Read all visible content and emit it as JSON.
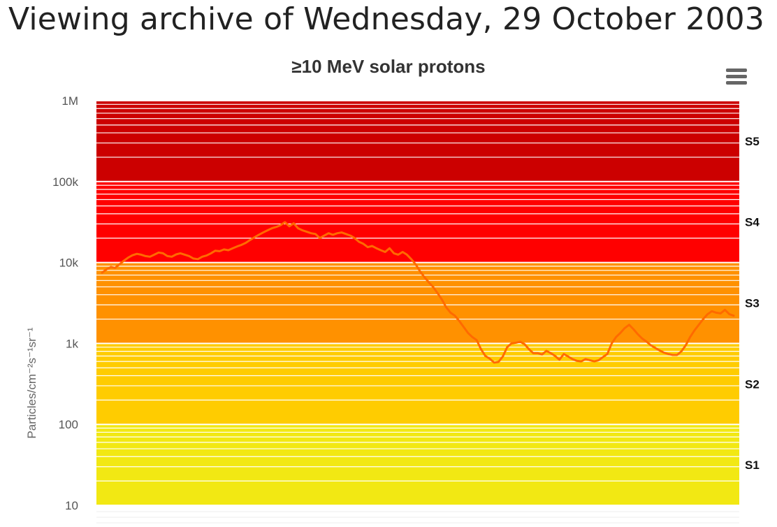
{
  "page": {
    "heading": "Viewing archive of Wednesday, 29 October 2003"
  },
  "menu": {
    "icon": "hamburger-menu-icon"
  },
  "chart_data": {
    "type": "line",
    "title": "≥10 MeV solar protons",
    "xlabel": "",
    "ylabel": "Particles/cm⁻²s⁻¹sr⁻¹",
    "y_scale": "log",
    "ylim": [
      10,
      1000000
    ],
    "y_ticks": [
      {
        "value": 10,
        "label": "10"
      },
      {
        "value": 100,
        "label": "100"
      },
      {
        "value": 1000,
        "label": "1k"
      },
      {
        "value": 10000,
        "label": "10k"
      },
      {
        "value": 100000,
        "label": "100k"
      },
      {
        "value": 1000000,
        "label": "1M"
      }
    ],
    "grid": true,
    "legend": "none",
    "bands": [
      {
        "from": 10,
        "to": 100,
        "color": "#f2e813"
      },
      {
        "from": 100,
        "to": 1000,
        "color": "#ffcc00"
      },
      {
        "from": 1000,
        "to": 10000,
        "color": "#ff9100"
      },
      {
        "from": 10000,
        "to": 100000,
        "color": "#ff0000"
      },
      {
        "from": 100000,
        "to": 1000000,
        "color": "#cc0000"
      }
    ],
    "scale_labels": [
      {
        "label": "S1",
        "value": 31.6
      },
      {
        "label": "S2",
        "value": 316
      },
      {
        "label": "S3",
        "value": 3160
      },
      {
        "label": "S4",
        "value": 31600
      },
      {
        "label": "S5",
        "value": 316000
      }
    ],
    "line_color": "#ff6a00",
    "series": [
      {
        "values": [
          7500,
          8200,
          8800,
          8600,
          9500,
          10500,
          11500,
          12300,
          12800,
          12500,
          12000,
          11800,
          12500,
          13300,
          13000,
          12000,
          11800,
          12600,
          13000,
          12500,
          12000,
          11200,
          11000,
          11800,
          12200,
          13000,
          14000,
          13800,
          14500,
          14200,
          15000,
          15800,
          16500,
          17500,
          19000,
          20500,
          22000,
          23500,
          25000,
          26500,
          27500,
          29000,
          31500,
          28000,
          30500,
          26500,
          25000,
          24000,
          23000,
          22500,
          20000,
          21500,
          23000,
          22000,
          23000,
          23500,
          22500,
          21500,
          20000,
          18000,
          17000,
          15500,
          16000,
          15000,
          14200,
          13500,
          15000,
          13000,
          12500,
          13500,
          12500,
          11000,
          9500,
          7800,
          6600,
          5700,
          5000,
          4200,
          3500,
          2800,
          2400,
          2200,
          1900,
          1600,
          1350,
          1200,
          1100,
          850,
          700,
          650,
          580,
          590,
          690,
          900,
          1000,
          1020,
          1050,
          980,
          850,
          760,
          760,
          730,
          810,
          760,
          700,
          630,
          740,
          690,
          640,
          610,
          600,
          640,
          620,
          600,
          620,
          680,
          740,
          1000,
          1200,
          1350,
          1550,
          1700,
          1500,
          1300,
          1150,
          1050,
          950,
          880,
          820,
          770,
          740,
          720,
          720,
          800,
          950,
          1200,
          1450,
          1700,
          2000,
          2300,
          2500,
          2400,
          2350,
          2600,
          2300,
          2200
        ]
      }
    ]
  }
}
